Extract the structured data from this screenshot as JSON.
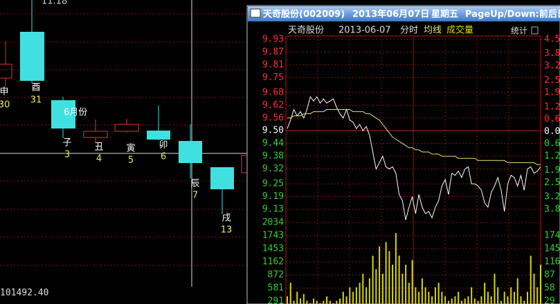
{
  "background": {
    "top_label": "11.18",
    "bottom_label": "101492.40",
    "month_label": "6月份",
    "candles": [
      {
        "label": "申",
        "day": 30
      },
      {
        "label": "酉",
        "day": 31
      },
      {
        "label": "子",
        "day": 3
      },
      {
        "label": "丑",
        "day": 4
      },
      {
        "label": "寅",
        "day": 5
      },
      {
        "label": "卯",
        "day": 6
      },
      {
        "label": "辰",
        "day": 7
      },
      {
        "label": "戌",
        "day": 13
      }
    ]
  },
  "window": {
    "title_name": "天奇股份(002009)",
    "title_date": "2013年06月07日",
    "title_weekday": "星期五",
    "title_hint": "PageUp/Down:前后日",
    "stats_button": "统计",
    "mode": "分时"
  },
  "chart_data": {
    "type": "line",
    "title": "天奇股份",
    "subtitle": "2013-06-07",
    "ylim": [
      9.13,
      9.93
    ],
    "yticks": [
      {
        "value": 9.93,
        "label": "9.93"
      },
      9.87,
      9.81,
      9.75,
      9.68,
      9.62,
      9.56,
      {
        "value": 9.5,
        "label": "9.50"
      },
      9.44,
      9.38,
      9.32,
      9.25,
      9.19,
      9.13
    ],
    "y2lim": [
      -3.8,
      4.5
    ],
    "y2ticks": [
      4.5,
      3.8,
      3.2,
      2.5,
      1.9,
      1.2,
      0.6,
      {
        "value": 0,
        "label": "0.00"
      },
      {
        "value": -0.6,
        "label": "0.6"
      },
      {
        "value": -1.2,
        "label": "1.2"
      },
      {
        "value": -1.9,
        "label": "1.9"
      },
      {
        "value": -2.5,
        "label": "2.5"
      },
      {
        "value": -3.2,
        "label": "3.2"
      },
      {
        "value": -3.8,
        "label": "3.8"
      }
    ],
    "volume_ylim": [
      0,
      2325
    ],
    "volume_yticks": [
      2034,
      1743,
      1453,
      1162,
      872,
      581,
      291
    ],
    "volume_y2ticks": [
      {
        "value": 1743,
        "label": "174"
      },
      {
        "value": 1453,
        "label": "145"
      },
      {
        "value": 1162,
        "label": "116"
      },
      {
        "value": 872,
        "label": "87"
      },
      {
        "value": 581,
        "label": "58"
      },
      {
        "value": 291,
        "label": "29"
      }
    ],
    "grid": true,
    "series": [
      {
        "name": "分时",
        "color": "#ffffff",
        "values": [
          9.51,
          9.55,
          9.6,
          9.57,
          9.59,
          9.56,
          9.6,
          9.66,
          9.64,
          9.66,
          9.63,
          9.65,
          9.63,
          9.64,
          9.65,
          9.61,
          9.58,
          9.56,
          9.6,
          9.55,
          9.54,
          9.51,
          9.53,
          9.5,
          9.52,
          9.48,
          9.4,
          9.32,
          9.35,
          9.38,
          9.33,
          9.32,
          9.33,
          9.3,
          9.2,
          9.17,
          9.08,
          9.14,
          9.19,
          9.11,
          9.2,
          9.14,
          9.11,
          9.12,
          9.09,
          9.14,
          9.17,
          9.24,
          9.27,
          9.2,
          9.3,
          9.29,
          9.31,
          9.28,
          9.32,
          9.33,
          9.25,
          9.25,
          9.24,
          9.22,
          9.16,
          9.14,
          9.21,
          9.24,
          9.28,
          9.22,
          9.12,
          9.25,
          9.29,
          9.28,
          9.24,
          9.29,
          9.22,
          9.32,
          9.33,
          9.3,
          9.31,
          9.33
        ]
      },
      {
        "name": "均线",
        "color": "#e8e860",
        "values": [
          9.56,
          9.56,
          9.57,
          9.57,
          9.57,
          9.58,
          9.58,
          9.58,
          9.59,
          9.59,
          9.59,
          9.59,
          9.6,
          9.6,
          9.6,
          9.6,
          9.6,
          9.6,
          9.6,
          9.6,
          9.59,
          9.59,
          9.59,
          9.59,
          9.58,
          9.58,
          9.57,
          9.56,
          9.55,
          9.53,
          9.51,
          9.49,
          9.47,
          9.46,
          9.45,
          9.44,
          9.43,
          9.42,
          9.42,
          9.41,
          9.41,
          9.4,
          9.4,
          9.4,
          9.39,
          9.39,
          9.39,
          9.38,
          9.38,
          9.38,
          9.38,
          9.38,
          9.37,
          9.37,
          9.37,
          9.37,
          9.37,
          9.37,
          9.36,
          9.36,
          9.36,
          9.36,
          9.36,
          9.36,
          9.36,
          9.36,
          9.36,
          9.35,
          9.35,
          9.35,
          9.35,
          9.35,
          9.35,
          9.35,
          9.35,
          9.35,
          9.34,
          9.34
        ]
      },
      {
        "name": "成交量",
        "color": "#d8d800",
        "axis": "volume",
        "values": [
          400,
          700,
          300,
          500,
          350,
          450,
          300,
          250,
          350,
          300,
          250,
          300,
          400,
          300,
          250,
          300,
          350,
          500,
          400,
          600,
          500,
          600,
          700,
          900,
          600,
          800,
          1300,
          1000,
          1500,
          900,
          1600,
          1400,
          1100,
          1800,
          1300,
          900,
          1100,
          700,
          1200,
          600,
          500,
          800,
          600,
          500,
          400,
          600,
          700,
          500,
          400,
          300,
          350,
          400,
          500,
          300,
          350,
          400,
          600,
          350,
          300,
          400,
          700,
          500,
          400,
          900,
          600,
          300,
          500,
          400,
          600,
          500,
          800,
          400,
          300,
          500,
          1300,
          900,
          600,
          1100
        ]
      }
    ]
  }
}
